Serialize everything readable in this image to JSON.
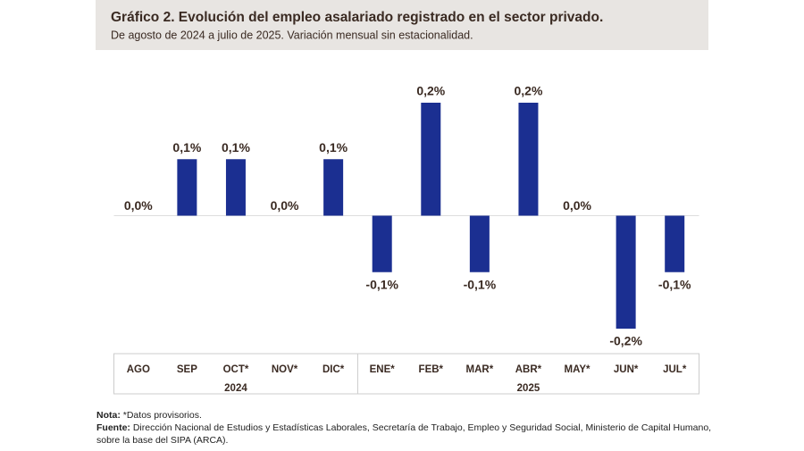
{
  "chart_data": {
    "type": "bar",
    "title": "Gráfico 2. Evolución del empleo asalariado registrado en el sector privado.",
    "subtitle": "De agosto de 2024 a julio de 2025. Variación mensual sin estacionalidad.",
    "categories": [
      "AGO",
      "SEP",
      "OCT*",
      "NOV*",
      "DIC*",
      "ENE*",
      "FEB*",
      "MAR*",
      "ABR*",
      "MAY*",
      "JUN*",
      "JUL*"
    ],
    "groups": [
      {
        "label": "2024",
        "span": 5
      },
      {
        "label": "2025",
        "span": 7
      }
    ],
    "values": [
      0.0,
      0.1,
      0.1,
      0.0,
      0.1,
      -0.1,
      0.2,
      -0.1,
      0.2,
      0.0,
      -0.2,
      -0.1
    ],
    "value_labels": [
      "0,0%",
      "0,1%",
      "0,1%",
      "0,0%",
      "0,1%",
      "-0,1%",
      "0,2%",
      "-0,1%",
      "0,2%",
      "0,0%",
      "-0,2%",
      "-0,1%"
    ],
    "color": "#1b2f91",
    "ylim": [
      -0.2,
      0.2
    ]
  },
  "notes": {
    "note_label": "Nota:",
    "note_text": "*Datos provisorios.",
    "source_label": "Fuente:",
    "source_text": "Dirección Nacional de Estudios y Estadísticas Laborales, Secretaría de Trabajo, Empleo y Seguridad Social, Ministerio de Capital Humano, sobre la base del SIPA (ARCA)."
  }
}
